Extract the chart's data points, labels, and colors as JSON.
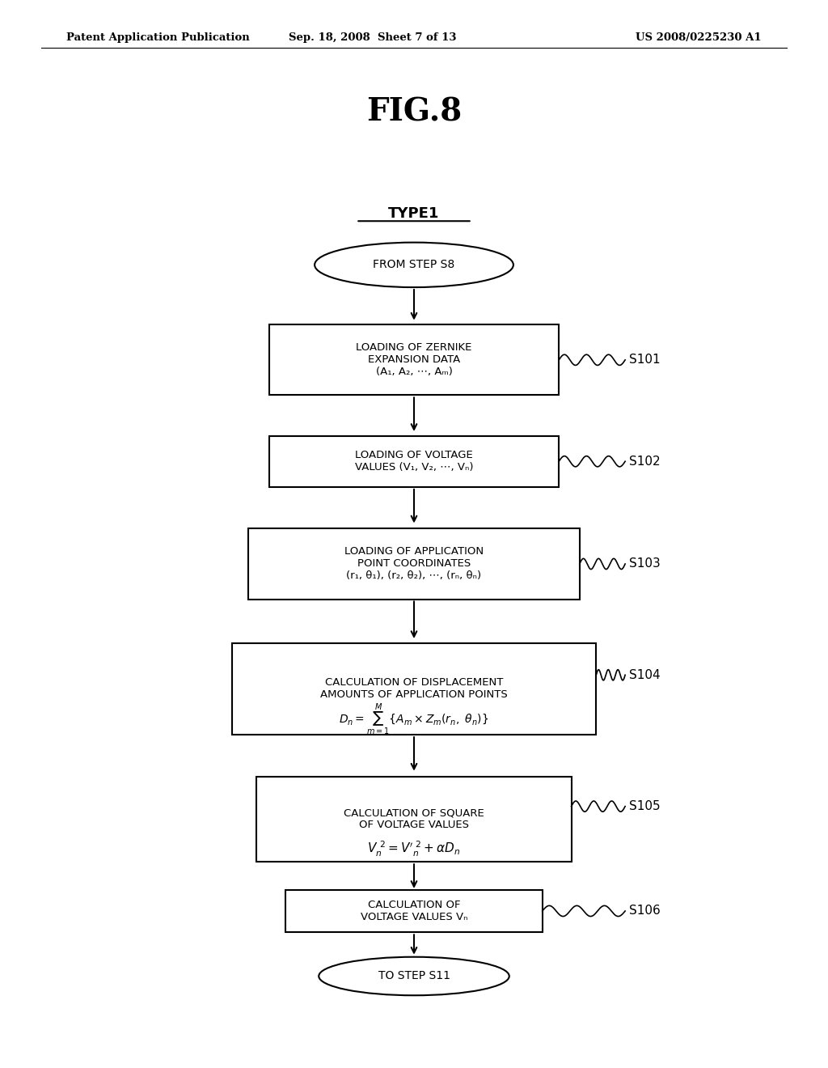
{
  "fig_width": 10.24,
  "fig_height": 13.2,
  "bg_color": "#ffffff",
  "header_left": "Patent Application Publication",
  "header_center": "Sep. 18, 2008  Sheet 7 of 13",
  "header_right": "US 2008/0225230 A1",
  "fig_title": "FIG.8",
  "type_label": "TYPE1"
}
